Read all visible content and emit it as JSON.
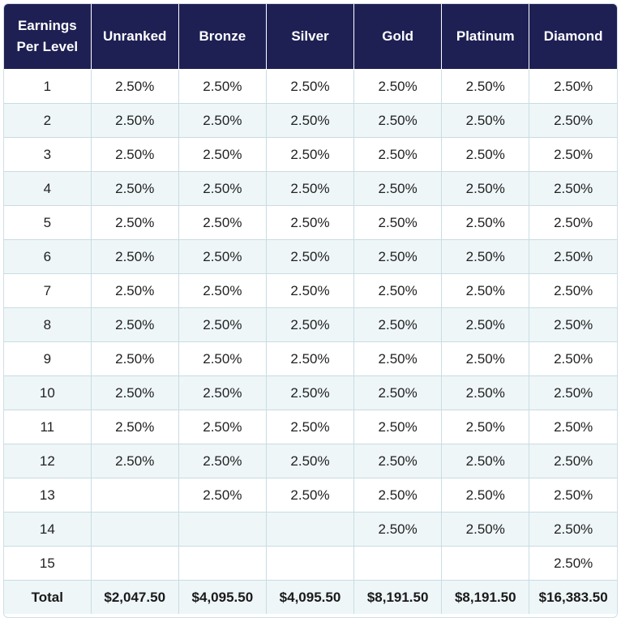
{
  "table": {
    "headers": [
      "Earnings Per Level",
      "Unranked",
      "Bronze",
      "Silver",
      "Gold",
      "Platinum",
      "Diamond"
    ],
    "rows": [
      [
        "1",
        "2.50%",
        "2.50%",
        "2.50%",
        "2.50%",
        "2.50%",
        "2.50%"
      ],
      [
        "2",
        "2.50%",
        "2.50%",
        "2.50%",
        "2.50%",
        "2.50%",
        "2.50%"
      ],
      [
        "3",
        "2.50%",
        "2.50%",
        "2.50%",
        "2.50%",
        "2.50%",
        "2.50%"
      ],
      [
        "4",
        "2.50%",
        "2.50%",
        "2.50%",
        "2.50%",
        "2.50%",
        "2.50%"
      ],
      [
        "5",
        "2.50%",
        "2.50%",
        "2.50%",
        "2.50%",
        "2.50%",
        "2.50%"
      ],
      [
        "6",
        "2.50%",
        "2.50%",
        "2.50%",
        "2.50%",
        "2.50%",
        "2.50%"
      ],
      [
        "7",
        "2.50%",
        "2.50%",
        "2.50%",
        "2.50%",
        "2.50%",
        "2.50%"
      ],
      [
        "8",
        "2.50%",
        "2.50%",
        "2.50%",
        "2.50%",
        "2.50%",
        "2.50%"
      ],
      [
        "9",
        "2.50%",
        "2.50%",
        "2.50%",
        "2.50%",
        "2.50%",
        "2.50%"
      ],
      [
        "10",
        "2.50%",
        "2.50%",
        "2.50%",
        "2.50%",
        "2.50%",
        "2.50%"
      ],
      [
        "11",
        "2.50%",
        "2.50%",
        "2.50%",
        "2.50%",
        "2.50%",
        "2.50%"
      ],
      [
        "12",
        "2.50%",
        "2.50%",
        "2.50%",
        "2.50%",
        "2.50%",
        "2.50%"
      ],
      [
        "13",
        "",
        "2.50%",
        "2.50%",
        "2.50%",
        "2.50%",
        "2.50%"
      ],
      [
        "14",
        "",
        "",
        "",
        "2.50%",
        "2.50%",
        "2.50%"
      ],
      [
        "15",
        "",
        "",
        "",
        "",
        "",
        "2.50%"
      ]
    ],
    "total": [
      "Total",
      "$2,047.50",
      "$4,095.50",
      "$4,095.50",
      "$8,191.50",
      "$8,191.50",
      "$16,383.50"
    ]
  },
  "colors": {
    "header_bg": "#1e2054",
    "header_text": "#ffffff",
    "stripe_bg": "#eef6f8",
    "border": "#c9dce3"
  }
}
